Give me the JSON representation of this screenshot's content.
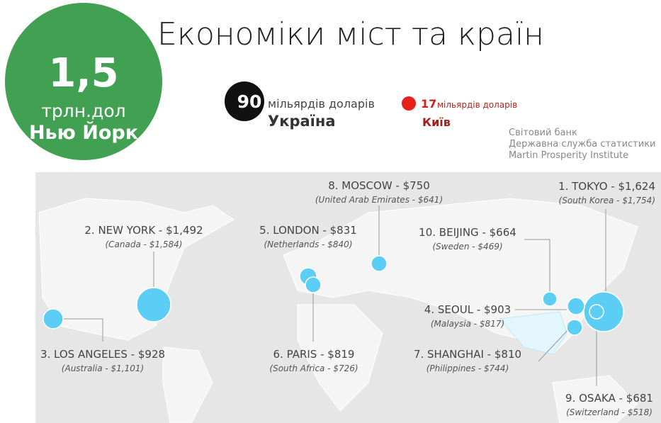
{
  "header": {
    "title": "Економіки міст та країн"
  },
  "badge": {
    "value": "1,5",
    "unit": "трлн.дол",
    "city": "Нью Йорк"
  },
  "legend": [
    {
      "value": "90",
      "unit": "мільярдів доларів",
      "name": "Україна"
    },
    {
      "value": "17",
      "unit": "мільярдів доларів",
      "name": "Київ"
    }
  ],
  "sources": [
    "Світовий банк",
    "Державна служба статистики",
    "Martin Prosperity Institute"
  ],
  "cities": [
    {
      "label": "1. TOKYO - $1,624",
      "compare": "(South Korea - $1,754)"
    },
    {
      "label": "2. NEW YORK - $1,492",
      "compare": "(Canada - $1,584)"
    },
    {
      "label": "3. LOS ANGELES - $928",
      "compare": "(Australia - $1,101)"
    },
    {
      "label": "4. SEOUL - $903",
      "compare": "(Malaysia - $817)"
    },
    {
      "label": "5. LONDON - $831",
      "compare": "(Netherlands - $840)"
    },
    {
      "label": "6. PARIS - $819",
      "compare": "(South Africa - $726)"
    },
    {
      "label": "7. SHANGHAI - $810",
      "compare": "(Philippines - $744)"
    },
    {
      "label": "8. MOSCOW - $750",
      "compare": "(United Arab Emirates - $641)"
    },
    {
      "label": "9. OSAKA - $681",
      "compare": "(Switzerland - $518)"
    },
    {
      "label": "10. BEIJING - $664",
      "compare": "(Sweden - $469)"
    }
  ]
}
